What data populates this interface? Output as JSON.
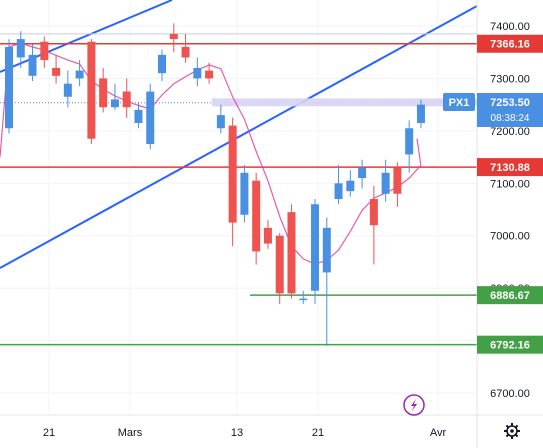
{
  "chart_data": {
    "type": "candlestick",
    "x_ticks": [
      "21",
      "Mars",
      "13",
      "21",
      "Avr"
    ],
    "y_ticks": [
      7400,
      7300,
      7200,
      7100,
      7000,
      6900,
      6800,
      6700
    ],
    "ylim": [
      6655,
      7435
    ],
    "current_price": {
      "value": "7253.50",
      "countdown": "08:38:24",
      "symbol": "PX1"
    },
    "levels": [
      {
        "value": 7366.16,
        "label": "7366.16",
        "color": "#e53935"
      },
      {
        "value": 7130.88,
        "label": "7130.88",
        "color": "#e53935"
      },
      {
        "value": 6886.67,
        "label": "6886.67",
        "color": "#43a047"
      },
      {
        "value": 6792.16,
        "label": "6792.16",
        "color": "#43a047"
      }
    ],
    "colors": {
      "up": "#4a90e2",
      "down": "#ef5350",
      "trend": "#2962ff",
      "ma": "#e040a0"
    },
    "candles": [
      {
        "open": 7205,
        "close": 7360,
        "high": 7375,
        "low": 7195
      },
      {
        "open": 7340,
        "close": 7375,
        "high": 7390,
        "low": 7320
      },
      {
        "open": 7305,
        "close": 7345,
        "high": 7365,
        "low": 7295
      },
      {
        "open": 7370,
        "close": 7335,
        "high": 7380,
        "low": 7320
      },
      {
        "open": 7320,
        "close": 7305,
        "high": 7345,
        "low": 7290
      },
      {
        "open": 7265,
        "close": 7290,
        "high": 7315,
        "low": 7245
      },
      {
        "open": 7300,
        "close": 7315,
        "high": 7335,
        "low": 7285
      },
      {
        "open": 7370,
        "close": 7185,
        "high": 7375,
        "low": 7175
      },
      {
        "open": 7300,
        "close": 7245,
        "high": 7320,
        "low": 7235
      },
      {
        "open": 7245,
        "close": 7260,
        "high": 7290,
        "low": 7240
      },
      {
        "open": 7275,
        "close": 7245,
        "high": 7300,
        "low": 7225
      },
      {
        "open": 7215,
        "close": 7240,
        "high": 7255,
        "low": 7205
      },
      {
        "open": 7175,
        "close": 7275,
        "high": 7290,
        "low": 7165
      },
      {
        "open": 7310,
        "close": 7345,
        "high": 7355,
        "low": 7295
      },
      {
        "open": 7385,
        "close": 7375,
        "high": 7405,
        "low": 7350
      },
      {
        "open": 7360,
        "close": 7340,
        "high": 7385,
        "low": 7330
      },
      {
        "open": 7300,
        "close": 7320,
        "high": 7340,
        "low": 7285
      },
      {
        "open": 7315,
        "close": 7300,
        "high": 7330,
        "low": 7290
      },
      {
        "open": 7205,
        "close": 7230,
        "high": 7250,
        "low": 7195
      },
      {
        "open": 7210,
        "close": 7025,
        "high": 7225,
        "low": 6980
      },
      {
        "open": 7040,
        "close": 7120,
        "high": 7135,
        "low": 7025
      },
      {
        "open": 7105,
        "close": 6970,
        "high": 7120,
        "low": 6945
      },
      {
        "open": 7015,
        "close": 6985,
        "high": 7030,
        "low": 6975
      },
      {
        "open": 7000,
        "close": 6890,
        "high": 7005,
        "low": 6870
      },
      {
        "open": 7045,
        "close": 6890,
        "high": 7060,
        "low": 6880
      },
      {
        "open": 6880,
        "close": 6880,
        "high": 6895,
        "low": 6870
      },
      {
        "open": 6895,
        "close": 7060,
        "high": 7070,
        "low": 6870
      },
      {
        "open": 6930,
        "close": 7015,
        "high": 7035,
        "low": 6790
      },
      {
        "open": 7070,
        "close": 7100,
        "high": 7135,
        "low": 7060
      },
      {
        "open": 7085,
        "close": 7105,
        "high": 7125,
        "low": 7075
      },
      {
        "open": 7110,
        "close": 7130,
        "high": 7145,
        "low": 7090
      },
      {
        "open": 7070,
        "close": 7020,
        "high": 7095,
        "low": 6945
      },
      {
        "open": 7080,
        "close": 7120,
        "high": 7145,
        "low": 7065
      },
      {
        "open": 7130,
        "close": 7080,
        "high": 7140,
        "low": 7055
      },
      {
        "open": 7155,
        "close": 7205,
        "high": 7220,
        "low": 7120
      },
      {
        "open": 7215,
        "close": 7250,
        "high": 7260,
        "low": 7205
      }
    ]
  }
}
